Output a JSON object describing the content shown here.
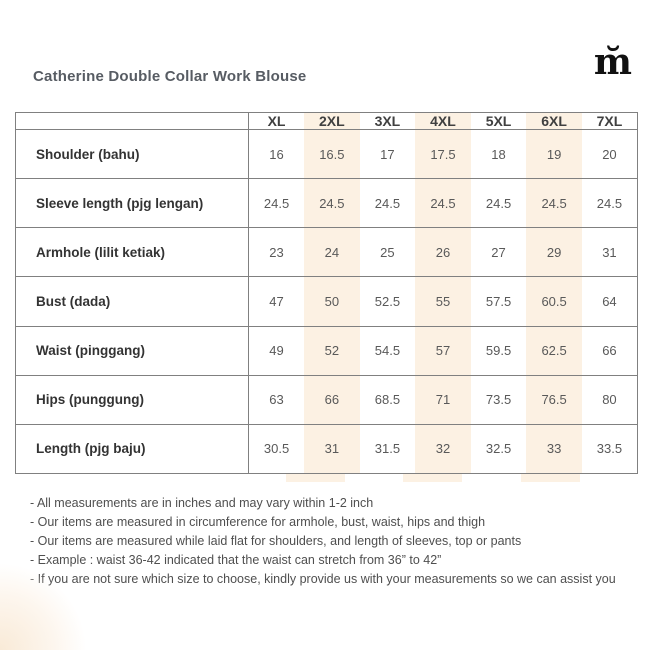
{
  "header": {
    "title": "Catherine Double Collar Work Blouse",
    "logo_text": "m̆"
  },
  "size_chart": {
    "columns": [
      "XL",
      "2XL",
      "3XL",
      "4XL",
      "5XL",
      "6XL",
      "7XL"
    ],
    "highlighted_columns": [
      "2XL",
      "4XL",
      "6XL"
    ],
    "rows": [
      {
        "label": "Shoulder (bahu)",
        "values": [
          "16",
          "16.5",
          "17",
          "17.5",
          "18",
          "19",
          "20"
        ]
      },
      {
        "label": "Sleeve length (pjg lengan)",
        "values": [
          "24.5",
          "24.5",
          "24.5",
          "24.5",
          "24.5",
          "24.5",
          "24.5"
        ]
      },
      {
        "label": "Armhole (lilit ketiak)",
        "values": [
          "23",
          "24",
          "25",
          "26",
          "27",
          "29",
          "31"
        ]
      },
      {
        "label": "Bust (dada)",
        "values": [
          "47",
          "50",
          "52.5",
          "55",
          "57.5",
          "60.5",
          "64"
        ]
      },
      {
        "label": "Waist (pinggang)",
        "values": [
          "49",
          "52",
          "54.5",
          "57",
          "59.5",
          "62.5",
          "66"
        ]
      },
      {
        "label": "Hips (punggung)",
        "values": [
          "63",
          "66",
          "68.5",
          "71",
          "73.5",
          "76.5",
          "80"
        ]
      },
      {
        "label": "Length (pjg baju)",
        "values": [
          "30.5",
          "31",
          "31.5",
          "32",
          "32.5",
          "33",
          "33.5"
        ]
      }
    ]
  },
  "notes": [
    "- All measurements are in inches and may vary within 1-2 inch",
    "- Our items are measured in circumference for armhole, bust, waist, hips and thigh",
    "- Our items are measured while laid flat for shoulders, and length of sleeves, top or pants",
    "- Example : waist 36-42 indicated that the waist can stretch from 36” to 42”",
    "- If you are not sure which size to choose, kindly provide us with your measurements so we can assist you"
  ],
  "colors": {
    "stripe": "#fcf1e3",
    "border": "#808080",
    "title_text": "#575c63",
    "header_text": "#404040",
    "label_text": "#333333",
    "value_text": "#595959",
    "note_text": "#4f4f4f",
    "logo": "#111111"
  }
}
